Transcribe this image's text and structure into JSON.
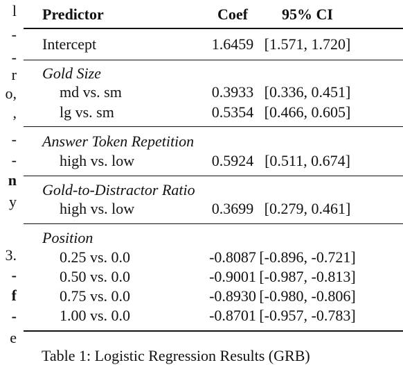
{
  "left_column_fragments": [
    {
      "text": "l",
      "bold": false
    },
    {
      "text": "-",
      "bold": false
    },
    {
      "text": "-",
      "bold": false
    },
    {
      "text": "r",
      "bold": false
    },
    {
      "text": "o,",
      "bold": false
    },
    {
      "text": ",",
      "bold": false
    },
    {
      "text": "-",
      "bold": false
    },
    {
      "text": "-",
      "bold": false
    },
    {
      "text": "n",
      "bold": true
    },
    {
      "text": "y",
      "bold": false
    },
    {
      "text": "3.",
      "bold": false
    },
    {
      "text": "-",
      "bold": true
    },
    {
      "text": "f",
      "bold": true
    },
    {
      "text": "-",
      "bold": true
    },
    {
      "text": "e",
      "bold": false
    }
  ],
  "table": {
    "headers": {
      "predictor": "Predictor",
      "coef": "Coef",
      "ci": "95% CI"
    },
    "intercept": {
      "predictor": "Intercept",
      "coef": "1.6459",
      "ci": "[1.571, 1.720]"
    },
    "groups": [
      {
        "name": "Gold Size",
        "rows": [
          {
            "predictor": "md vs. sm",
            "coef": "0.3933",
            "ci": "[0.336, 0.451]"
          },
          {
            "predictor": "lg vs. sm",
            "coef": "0.5354",
            "ci": "[0.466, 0.605]"
          }
        ]
      },
      {
        "name": "Answer Token Repetition",
        "rows": [
          {
            "predictor": "high vs. low",
            "coef": "0.5924",
            "ci": "[0.511, 0.674]"
          }
        ]
      },
      {
        "name": "Gold-to-Distractor Ratio",
        "rows": [
          {
            "predictor": "high vs. low",
            "coef": "0.3699",
            "ci": "[0.279, 0.461]"
          }
        ]
      },
      {
        "name": "Position",
        "rows": [
          {
            "predictor": "0.25 vs. 0.0",
            "coef": "-0.8087",
            "ci": "[-0.896, -0.721]"
          },
          {
            "predictor": "0.50 vs. 0.0",
            "coef": "-0.9001",
            "ci": "[-0.987, -0.813]"
          },
          {
            "predictor": "0.75 vs. 0.0",
            "coef": "-0.8930",
            "ci": "[-0.980, -0.806]"
          },
          {
            "predictor": "1.00 vs. 0.0",
            "coef": "-0.8701",
            "ci": "[-0.957, -0.783]"
          }
        ]
      }
    ]
  },
  "caption": "Table 1: Logistic Regression Results (GRB)"
}
